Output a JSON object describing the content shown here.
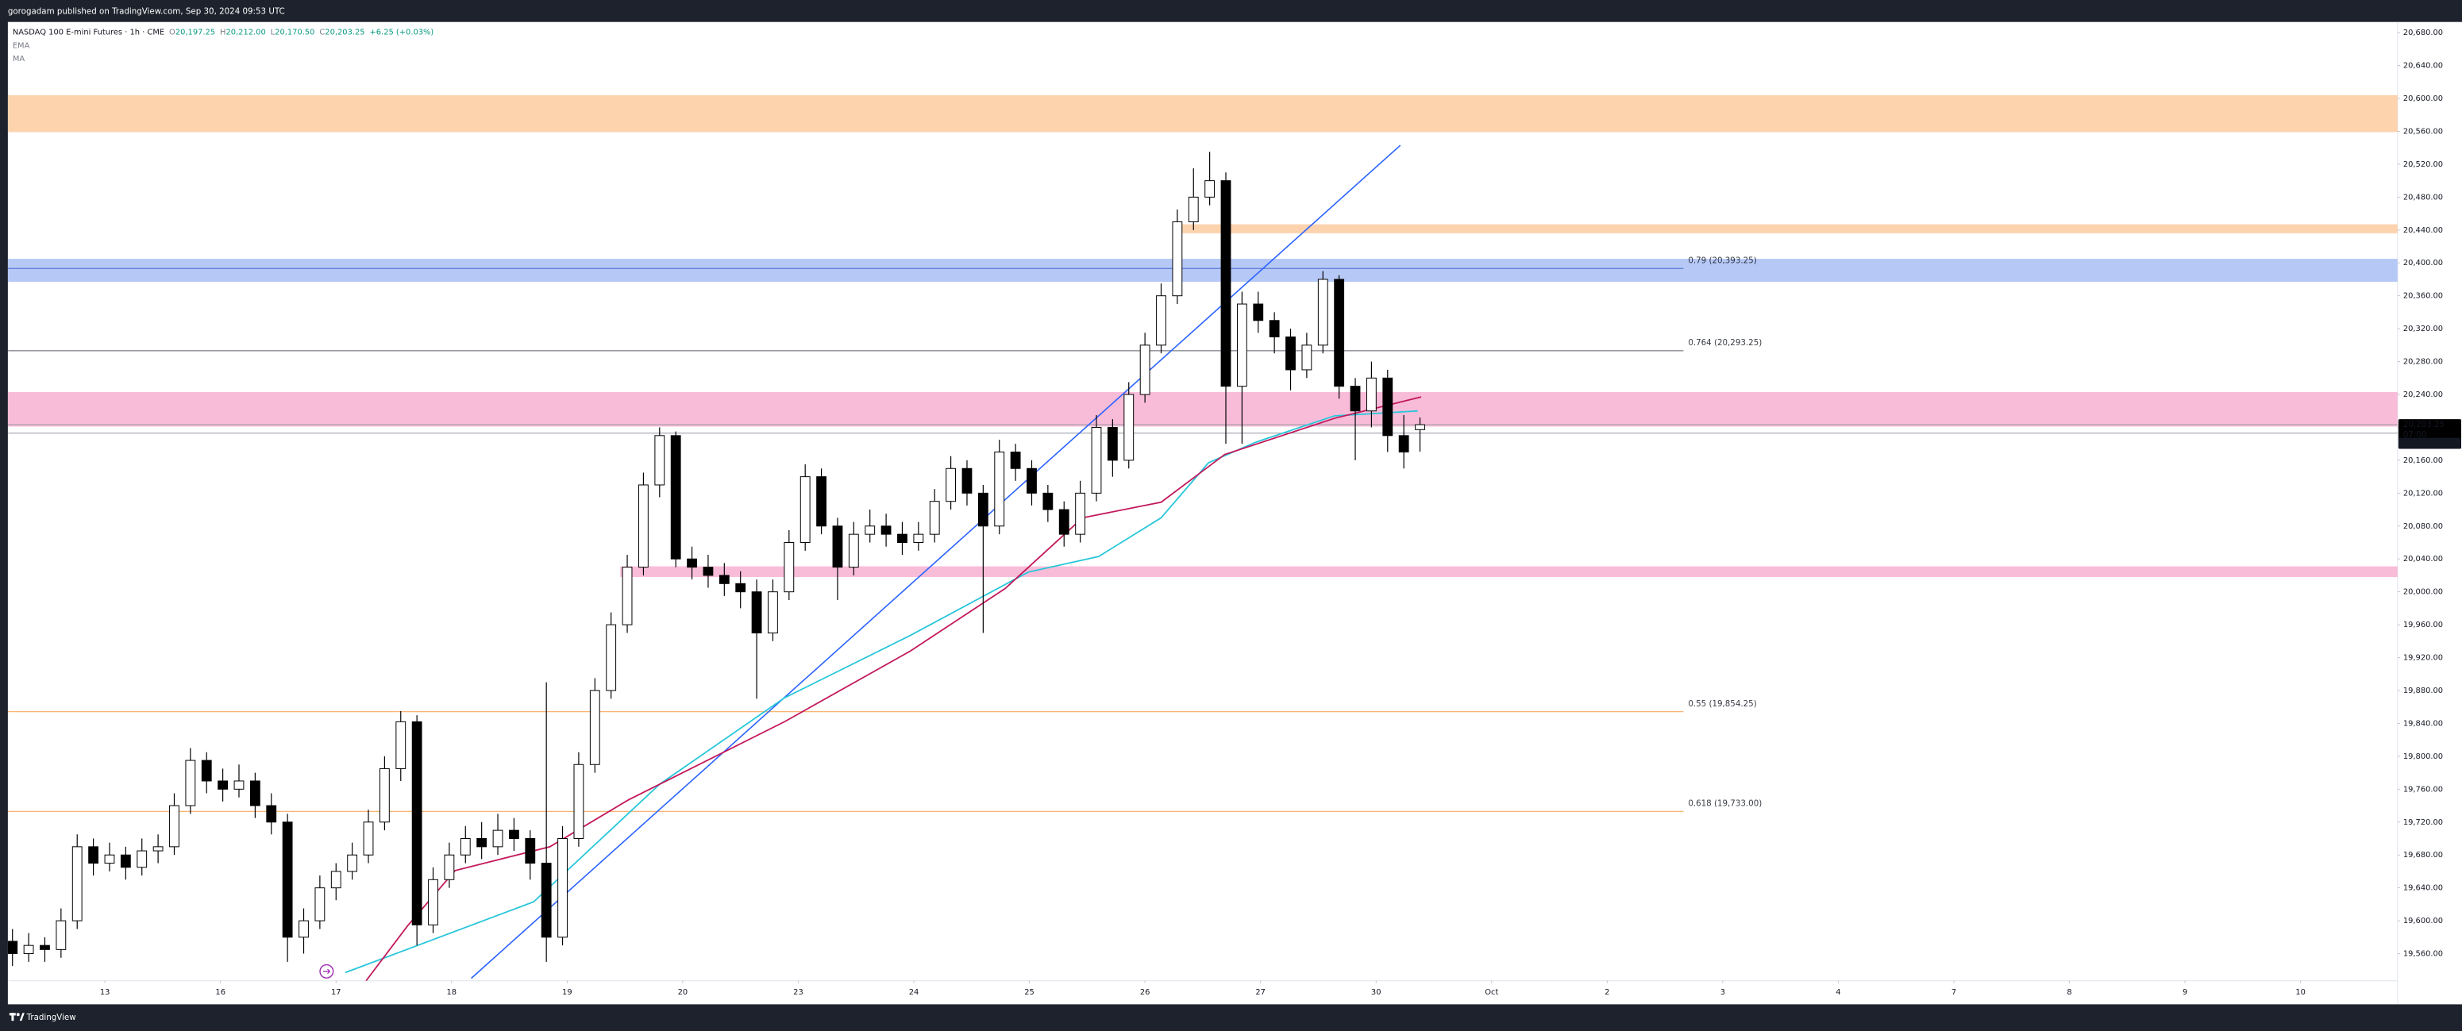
{
  "header": {
    "publisher": "gorogadam published on TradingView.com, Sep 30, 2024 09:53 UTC",
    "brand": "TradingView"
  },
  "chart_data": {
    "type": "candlestick",
    "symbol": "NASDAQ 100 E-mini Futures · 1h · CME",
    "ohlc": [
      {
        "label": "O",
        "value": "20,197.25"
      },
      {
        "label": "H",
        "value": "20,212.00"
      },
      {
        "label": "L",
        "value": "20,170.50"
      },
      {
        "label": "C",
        "value": "20,203.25"
      }
    ],
    "change": "+6.25 (+0.03%)",
    "up_color": "#ffffff",
    "down_color": "#000000",
    "wick_color": "#000000",
    "x": [
      -0.8,
      -0.66,
      -0.52,
      -0.38,
      -0.24,
      -0.1,
      0.04,
      0.18,
      0.32,
      0.46,
      0.6,
      0.74,
      0.88,
      1.02,
      1.16,
      1.3,
      1.44,
      1.58,
      1.72,
      1.86,
      2.0,
      2.14,
      2.28,
      2.42,
      2.56,
      2.7,
      2.84,
      2.98,
      3.12,
      3.26,
      3.4,
      3.54,
      3.68,
      3.82,
      3.96,
      4.1,
      4.24,
      4.38,
      4.52,
      4.66,
      4.8,
      4.94,
      5.08,
      5.22,
      5.36,
      5.5,
      5.64,
      5.78,
      5.92,
      6.06,
      6.2,
      6.34,
      6.48,
      6.62,
      6.76,
      6.9,
      7.04,
      7.18,
      7.32,
      7.46,
      7.6,
      7.74,
      7.88,
      8.02,
      8.16,
      8.3,
      8.44,
      8.58,
      8.72,
      8.86,
      9.0,
      9.14,
      9.28,
      9.42,
      9.56,
      9.7,
      9.84,
      9.98,
      10.12,
      10.26,
      10.4,
      10.54,
      10.68,
      10.82,
      10.96,
      11.1,
      11.24,
      11.38
    ],
    "candles": [
      [
        19575,
        19590,
        19545,
        19560
      ],
      [
        19560,
        19585,
        19550,
        19570
      ],
      [
        19570,
        19580,
        19550,
        19565
      ],
      [
        19565,
        19615,
        19555,
        19600
      ],
      [
        19600,
        19705,
        19590,
        19690
      ],
      [
        19690,
        19700,
        19655,
        19670
      ],
      [
        19670,
        19695,
        19660,
        19680
      ],
      [
        19680,
        19690,
        19650,
        19665
      ],
      [
        19665,
        19700,
        19655,
        19685
      ],
      [
        19685,
        19705,
        19670,
        19690
      ],
      [
        19690,
        19755,
        19680,
        19740
      ],
      [
        19740,
        19810,
        19730,
        19795
      ],
      [
        19795,
        19805,
        19755,
        19770
      ],
      [
        19770,
        19785,
        19745,
        19760
      ],
      [
        19760,
        19790,
        19750,
        19770
      ],
      [
        19770,
        19780,
        19725,
        19740
      ],
      [
        19740,
        19755,
        19705,
        19720
      ],
      [
        19720,
        19730,
        19550,
        19580
      ],
      [
        19580,
        19615,
        19560,
        19600
      ],
      [
        19600,
        19655,
        19590,
        19640
      ],
      [
        19640,
        19670,
        19625,
        19660
      ],
      [
        19660,
        19695,
        19650,
        19680
      ],
      [
        19680,
        19735,
        19670,
        19720
      ],
      [
        19720,
        19800,
        19710,
        19785
      ],
      [
        19785,
        19855,
        19770,
        19842
      ],
      [
        19842,
        19850,
        19570,
        19595
      ],
      [
        19595,
        19665,
        19585,
        19650
      ],
      [
        19650,
        19695,
        19640,
        19680
      ],
      [
        19680,
        19715,
        19670,
        19700
      ],
      [
        19700,
        19720,
        19675,
        19690
      ],
      [
        19690,
        19730,
        19680,
        19710
      ],
      [
        19710,
        19725,
        19685,
        19700
      ],
      [
        19700,
        19710,
        19650,
        19670
      ],
      [
        19670,
        19890,
        19550,
        19580
      ],
      [
        19580,
        19715,
        19570,
        19700
      ],
      [
        19700,
        19805,
        19690,
        19790
      ],
      [
        19790,
        19895,
        19780,
        19880
      ],
      [
        19880,
        19975,
        19870,
        19960
      ],
      [
        19960,
        20045,
        19950,
        20030
      ],
      [
        20030,
        20145,
        20020,
        20130
      ],
      [
        20130,
        20200,
        20115,
        20190
      ],
      [
        20190,
        20195,
        20030,
        20040
      ],
      [
        20040,
        20055,
        20015,
        20030
      ],
      [
        20030,
        20045,
        20005,
        20020
      ],
      [
        20020,
        20035,
        19995,
        20010
      ],
      [
        20010,
        20025,
        19980,
        20000
      ],
      [
        20000,
        20015,
        19870,
        19950
      ],
      [
        19950,
        20015,
        19940,
        20000
      ],
      [
        20000,
        20075,
        19990,
        20060
      ],
      [
        20060,
        20155,
        20050,
        20140
      ],
      [
        20140,
        20150,
        20070,
        20080
      ],
      [
        20080,
        20090,
        19990,
        20030
      ],
      [
        20030,
        20085,
        20020,
        20070
      ],
      [
        20070,
        20100,
        20060,
        20080
      ],
      [
        20080,
        20095,
        20055,
        20070
      ],
      [
        20070,
        20085,
        20045,
        20060
      ],
      [
        20060,
        20085,
        20050,
        20070
      ],
      [
        20070,
        20125,
        20060,
        20110
      ],
      [
        20110,
        20165,
        20100,
        20150
      ],
      [
        20150,
        20160,
        20105,
        20120
      ],
      [
        20120,
        20130,
        19950,
        20080
      ],
      [
        20080,
        20185,
        20070,
        20170
      ],
      [
        20170,
        20180,
        20135,
        20150
      ],
      [
        20150,
        20160,
        20105,
        20120
      ],
      [
        20120,
        20130,
        20085,
        20100
      ],
      [
        20100,
        20110,
        20055,
        20070
      ],
      [
        20070,
        20135,
        20060,
        20120
      ],
      [
        20120,
        20215,
        20110,
        20200
      ],
      [
        20200,
        20210,
        20140,
        20160
      ],
      [
        20160,
        20255,
        20150,
        20240
      ],
      [
        20240,
        20315,
        20230,
        20300
      ],
      [
        20300,
        20375,
        20290,
        20360
      ],
      [
        20360,
        20465,
        20350,
        20450
      ],
      [
        20450,
        20515,
        20440,
        20480
      ],
      [
        20480,
        20535,
        20470,
        20500
      ],
      [
        20500,
        20510,
        20180,
        20250
      ],
      [
        20250,
        20365,
        20180,
        20350
      ],
      [
        20350,
        20365,
        20315,
        20330
      ],
      [
        20330,
        20340,
        20290,
        20310
      ],
      [
        20310,
        20320,
        20245,
        20270
      ],
      [
        20270,
        20315,
        20260,
        20300
      ],
      [
        20300,
        20390,
        20290,
        20380
      ],
      [
        20380,
        20385,
        20235,
        20250
      ],
      [
        20250,
        20260,
        20160,
        20220
      ],
      [
        20220,
        20280,
        20200,
        20260
      ],
      [
        20260,
        20270,
        20170,
        20190
      ],
      [
        20190,
        20215,
        20150,
        20170
      ],
      [
        20197.25,
        20212,
        20170.5,
        20203.25
      ]
    ],
    "indicators": [
      {
        "name": "EMA",
        "color": "#26c6da",
        "x": [
          2.08,
          3.71,
          4.8,
          5.88,
          6.97,
          7.99,
          8.6,
          9.14,
          9.55,
          9.96,
          10.64,
          11.36
        ],
        "values": [
          19537,
          19623,
          19766,
          19871,
          19947,
          20024,
          20043,
          20090,
          20157,
          20182,
          20214,
          20220
        ]
      },
      {
        "name": "MA",
        "color": "#c2185b",
        "x": [
          2.26,
          2.62,
          3.03,
          3.85,
          4.53,
          5.07,
          5.88,
          6.97,
          7.79,
          8.46,
          9.14,
          9.69,
          10.64,
          11.39
        ],
        "values": [
          19527,
          19594,
          19661,
          19690,
          19747,
          19785,
          19842,
          19928,
          20004,
          20090,
          20109,
          20167,
          20211,
          20237
        ]
      }
    ],
    "zones": [
      {
        "low": 20559,
        "high": 20604,
        "x_start": -0.84,
        "color": "#fdd3ae"
      },
      {
        "low": 20436,
        "high": 20447,
        "x_start": 9.28,
        "color": "#fdd3ae"
      },
      {
        "low": 20377,
        "high": 20405,
        "x_start": -0.84,
        "color": "#b6c8f6"
      },
      {
        "low": 20201,
        "high": 20243,
        "x_start": -0.84,
        "color": "#f8bcd8"
      },
      {
        "low": 20018,
        "high": 20031,
        "x_start": 4.46,
        "color": "#f8bcd8"
      }
    ],
    "levels": [
      {
        "value": 20393.25,
        "label": "0.79 (20,393.25)",
        "color": "#5b7bd5",
        "x_end": 13.66
      },
      {
        "value": 20293.25,
        "label": "0.764 (20,293.25)",
        "color": "#787b86",
        "x_end": 13.66
      },
      {
        "value": 19854.25,
        "label": "0.55 (19,854.25)",
        "color": "#f7a960",
        "x_end": 13.66
      },
      {
        "value": 19733,
        "label": "0.618 (19,733.00)",
        "color": "#f7a960",
        "x_end": 13.66
      }
    ],
    "trendline": {
      "color": "#2962ff",
      "x": [
        3.17,
        11.21
      ],
      "values": [
        19530,
        20543
      ]
    },
    "price_labels": [
      {
        "value": 20203.25,
        "label": "20,203.25",
        "countdown": "07:00",
        "color": "#000000"
      },
      {
        "value": 20193,
        "label": "20,193.00",
        "color": "#131722"
      }
    ],
    "xlim": [
      -0.84,
      19.84
    ],
    "ylim": [
      19527,
      20693
    ],
    "xticks": [
      {
        "value": 0,
        "label": "13"
      },
      {
        "value": 1,
        "label": "16"
      },
      {
        "value": 2,
        "label": "17"
      },
      {
        "value": 3,
        "label": "18"
      },
      {
        "value": 4,
        "label": "19"
      },
      {
        "value": 5,
        "label": "20"
      },
      {
        "value": 6,
        "label": "23"
      },
      {
        "value": 7,
        "label": "24"
      },
      {
        "value": 8,
        "label": "25"
      },
      {
        "value": 9,
        "label": "26"
      },
      {
        "value": 10,
        "label": "27"
      },
      {
        "value": 11,
        "label": "30"
      },
      {
        "value": 12,
        "label": "Oct"
      },
      {
        "value": 13,
        "label": "2"
      },
      {
        "value": 14,
        "label": "3"
      },
      {
        "value": 15,
        "label": "4"
      },
      {
        "value": 16,
        "label": "7"
      },
      {
        "value": 17,
        "label": "8"
      },
      {
        "value": 18,
        "label": "9"
      },
      {
        "value": 19,
        "label": "10"
      }
    ],
    "yticks": [
      {
        "value": 19560,
        "label": "19,560.00"
      },
      {
        "value": 19600,
        "label": "19,600.00"
      },
      {
        "value": 19640,
        "label": "19,640.00"
      },
      {
        "value": 19680,
        "label": "19,680.00"
      },
      {
        "value": 19720,
        "label": "19,720.00"
      },
      {
        "value": 19760,
        "label": "19,760.00"
      },
      {
        "value": 19800,
        "label": "19,800.00"
      },
      {
        "value": 19840,
        "label": "19,840.00"
      },
      {
        "value": 19880,
        "label": "19,880.00"
      },
      {
        "value": 19920,
        "label": "19,920.00"
      },
      {
        "value": 19960,
        "label": "19,960.00"
      },
      {
        "value": 20000,
        "label": "20,000.00"
      },
      {
        "value": 20040,
        "label": "20,040.00"
      },
      {
        "value": 20080,
        "label": "20,080.00"
      },
      {
        "value": 20120,
        "label": "20,120.00"
      },
      {
        "value": 20160,
        "label": "20,160.00"
      },
      {
        "value": 20200,
        "label": "20,200.00"
      },
      {
        "value": 20240,
        "label": "20,240.00"
      },
      {
        "value": 20280,
        "label": "20,280.00"
      },
      {
        "value": 20320,
        "label": "20,320.00"
      },
      {
        "value": 20360,
        "label": "20,360.00"
      },
      {
        "value": 20400,
        "label": "20,400.00"
      },
      {
        "value": 20440,
        "label": "20,440.00"
      },
      {
        "value": 20480,
        "label": "20,480.00"
      },
      {
        "value": 20520,
        "label": "20,520.00"
      },
      {
        "value": 20560,
        "label": "20,560.00"
      },
      {
        "value": 20600,
        "label": "20,600.00"
      },
      {
        "value": 20640,
        "label": "20,640.00"
      },
      {
        "value": 20680,
        "label": "20,680.00"
      }
    ],
    "grid": false
  }
}
